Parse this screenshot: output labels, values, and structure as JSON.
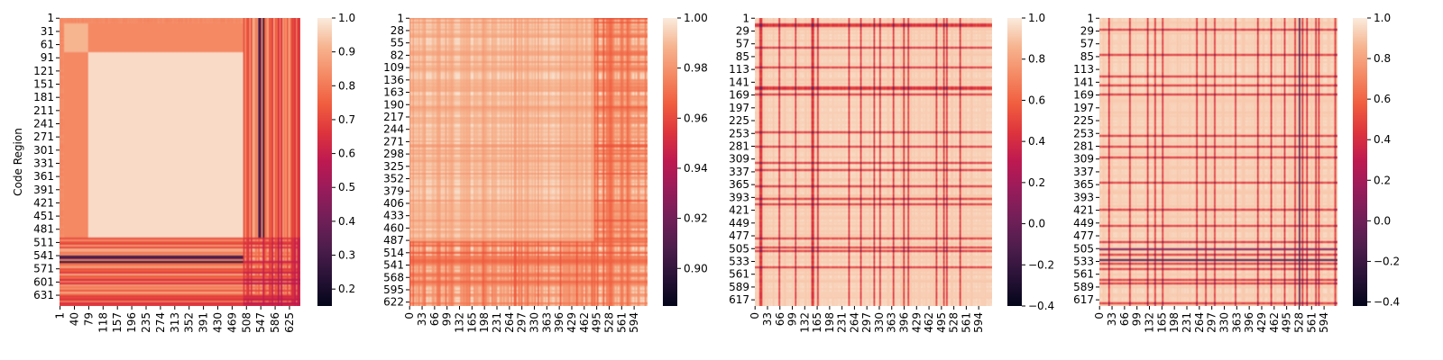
{
  "chart_data": [
    {
      "type": "heatmap",
      "ylabel": "Code Region",
      "xlabel": "",
      "n": 655,
      "x_ticks": [
        "1",
        "40",
        "79",
        "118",
        "157",
        "196",
        "235",
        "274",
        "313",
        "352",
        "391",
        "430",
        "469",
        "508",
        "547",
        "586",
        "625"
      ],
      "y_ticks": [
        "1",
        "31",
        "61",
        "91",
        "121",
        "151",
        "181",
        "211",
        "241",
        "271",
        "301",
        "331",
        "361",
        "391",
        "421",
        "451",
        "481",
        "511",
        "541",
        "571",
        "601",
        "631"
      ],
      "colorbar": {
        "min": 0.15,
        "max": 1.0,
        "ticks": [
          "1.0",
          "0.9",
          "0.8",
          "0.7",
          "0.6",
          "0.5",
          "0.4",
          "0.3",
          "0.2"
        ]
      },
      "regions": [
        {
          "name": "dominant-block",
          "range": [
            91,
            500
          ],
          "level": 1.0
        },
        {
          "name": "top-block",
          "range": [
            1,
            90
          ],
          "level": 0.95
        },
        {
          "name": "cross-band",
          "range": [
            79,
            500
          ],
          "level": 0.8
        },
        {
          "name": "low-region",
          "range": [
            501,
            655
          ],
          "level": 0.75
        },
        {
          "name": "dark-band",
          "range": [
            540,
            550
          ],
          "level": 0.2
        }
      ]
    },
    {
      "type": "heatmap",
      "xlabel": "",
      "ylabel": "",
      "n": 630,
      "x_ticks": [
        "0",
        "33",
        "66",
        "99",
        "132",
        "165",
        "198",
        "231",
        "264",
        "297",
        "330",
        "363",
        "396",
        "429",
        "462",
        "495",
        "528",
        "561",
        "594"
      ],
      "y_ticks": [
        "1",
        "28",
        "55",
        "82",
        "109",
        "136",
        "163",
        "190",
        "217",
        "244",
        "271",
        "298",
        "325",
        "352",
        "379",
        "406",
        "433",
        "460",
        "487",
        "514",
        "541",
        "568",
        "595",
        "622"
      ],
      "colorbar": {
        "min": 0.885,
        "max": 1.0,
        "ticks": [
          "1.00",
          "0.98",
          "0.96",
          "0.94",
          "0.92",
          "0.90"
        ]
      },
      "regions": [
        {
          "name": "overall",
          "range": [
            1,
            630
          ],
          "level": 0.985
        },
        {
          "name": "noisy-right",
          "range": [
            490,
            630
          ],
          "level": 0.965
        }
      ]
    },
    {
      "type": "heatmap",
      "xlabel": "",
      "ylabel": "",
      "n": 630,
      "x_ticks": [
        "0",
        "33",
        "66",
        "99",
        "132",
        "165",
        "198",
        "231",
        "264",
        "297",
        "330",
        "363",
        "396",
        "429",
        "462",
        "495",
        "528",
        "561",
        "594"
      ],
      "y_ticks": [
        "1",
        "29",
        "57",
        "85",
        "113",
        "141",
        "169",
        "197",
        "225",
        "253",
        "281",
        "309",
        "337",
        "365",
        "393",
        "421",
        "449",
        "477",
        "505",
        "533",
        "561",
        "589",
        "617"
      ],
      "colorbar": {
        "min": -0.4,
        "max": 1.0,
        "ticks": [
          "1.0",
          "0.8",
          "0.6",
          "0.4",
          "0.2",
          "0.0",
          "−0.2",
          "−0.4"
        ]
      },
      "regions": [
        {
          "name": "background",
          "range": [
            1,
            630
          ],
          "level": 0.95
        },
        {
          "name": "dark-line",
          "range": [
            492,
            494
          ],
          "level": -0.2
        }
      ]
    },
    {
      "type": "heatmap",
      "xlabel": "",
      "ylabel": "",
      "n": 630,
      "x_ticks": [
        "0",
        "33",
        "66",
        "99",
        "132",
        "165",
        "198",
        "231",
        "264",
        "297",
        "330",
        "363",
        "396",
        "429",
        "462",
        "495",
        "528",
        "561",
        "594"
      ],
      "y_ticks": [
        "1",
        "29",
        "57",
        "85",
        "113",
        "141",
        "169",
        "197",
        "225",
        "253",
        "281",
        "309",
        "337",
        "365",
        "393",
        "421",
        "449",
        "477",
        "505",
        "533",
        "561",
        "589",
        "617"
      ],
      "colorbar": {
        "min": -0.42,
        "max": 1.0,
        "ticks": [
          "1.0",
          "0.8",
          "0.6",
          "0.4",
          "0.2",
          "0.0",
          "−0.2",
          "−0.4"
        ]
      },
      "regions": [
        {
          "name": "background",
          "range": [
            1,
            630
          ],
          "level": 0.95
        },
        {
          "name": "dark-line",
          "range": [
            528,
            530
          ],
          "level": -0.2
        }
      ]
    }
  ]
}
